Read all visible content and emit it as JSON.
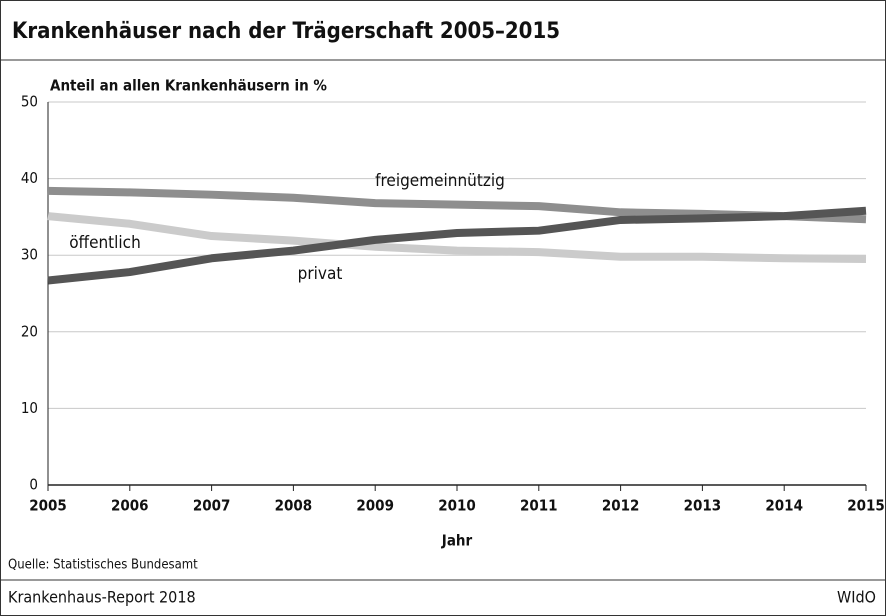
{
  "chart_data": {
    "type": "line",
    "title": "Krankenhäuser nach der Trägerschaft 2005–2015",
    "y_label": "Anteil an allen Krankenhäusern in %",
    "x_label": "Jahr",
    "source": "Quelle: Statistisches Bundesamt",
    "x": [
      2005,
      2006,
      2007,
      2008,
      2009,
      2010,
      2011,
      2012,
      2013,
      2014,
      2015
    ],
    "xlim": [
      2005,
      2015
    ],
    "xticks": [
      2005,
      2006,
      2007,
      2008,
      2009,
      2010,
      2011,
      2012,
      2013,
      2014,
      2015
    ],
    "ylim": [
      0,
      50
    ],
    "yticks": [
      0,
      10,
      20,
      30,
      40,
      50
    ],
    "grid": true,
    "series": [
      {
        "name": "freigemeinnützig",
        "color": "#8e8e8e",
        "values": [
          38.4,
          38.2,
          37.9,
          37.5,
          36.8,
          36.6,
          36.4,
          35.6,
          35.4,
          35.1,
          34.7
        ]
      },
      {
        "name": "öffentlich",
        "color": "#cbcbcb",
        "values": [
          35.1,
          34.1,
          32.5,
          31.9,
          31.1,
          30.6,
          30.4,
          29.8,
          29.8,
          29.6,
          29.5
        ]
      },
      {
        "name": "privat",
        "color": "#555555",
        "values": [
          26.7,
          27.8,
          29.6,
          30.6,
          32.0,
          32.9,
          33.2,
          34.6,
          34.8,
          35.1,
          35.8
        ]
      }
    ]
  },
  "footer": {
    "left": "Krankenhaus-Report 2018",
    "right": "WIdO"
  }
}
